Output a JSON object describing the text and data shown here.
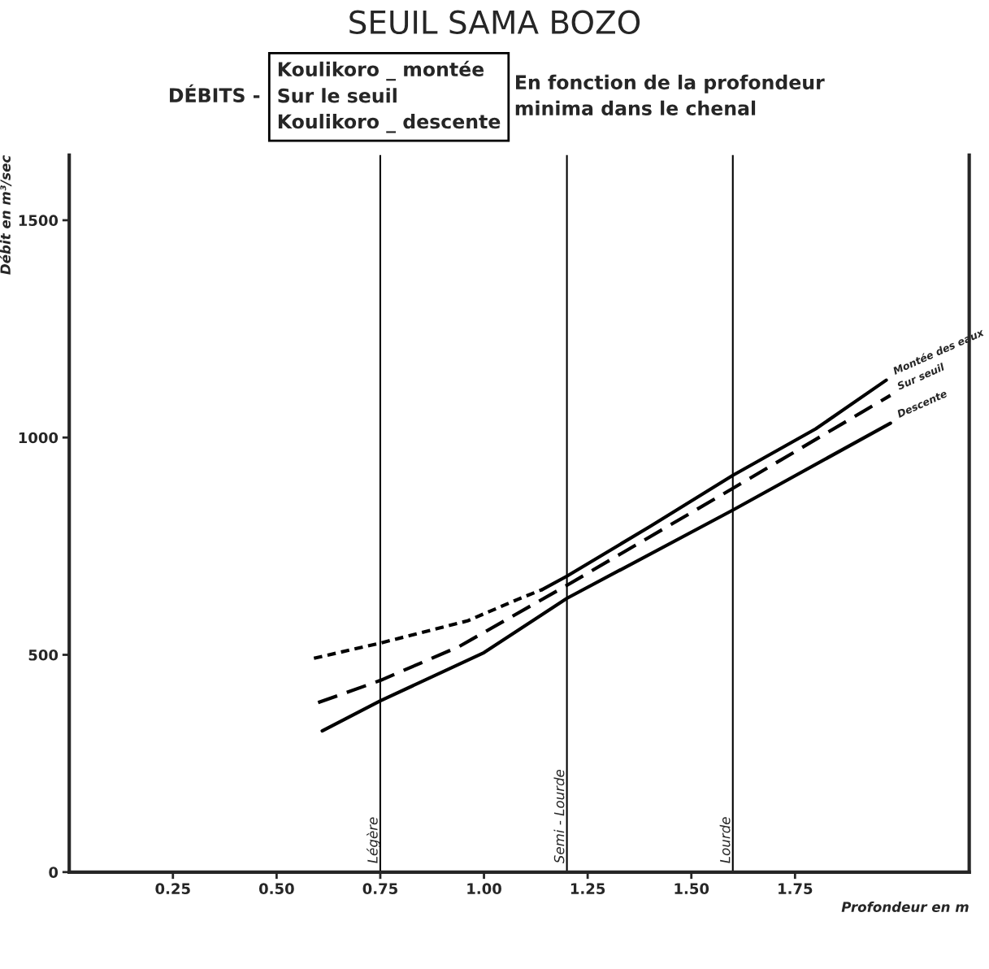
{
  "chart_data": {
    "type": "line",
    "title": "SEUIL SAMA BOZO",
    "xlabel": "Profondeur en m",
    "ylabel": "Débit en m³/sec",
    "annotations": [
      "DÉBITS -",
      "Koulikoro _ montée\nSur le seuil\nKoulikoro _ descente",
      "En fonction de la profondeur\nminima dans le chenal"
    ],
    "series": [
      {
        "name": "Montée des eaux",
        "color": "#000000",
        "line_style": "solid",
        "x": [
          1.14,
          1.2,
          1.4,
          1.6,
          1.8,
          1.97
        ],
        "values": [
          650,
          681,
          795,
          913,
          1020,
          1132
        ]
      },
      {
        "color": "#000000",
        "line_style": "dotted",
        "x": [
          0.59,
          0.75,
          0.96,
          1.08,
          1.14
        ],
        "values": [
          492,
          527,
          578,
          627,
          650
        ]
      },
      {
        "name": "Sur seuil",
        "color": "#000000",
        "line_style": "dashed",
        "x": [
          0.6,
          0.75,
          0.94,
          1.2,
          1.6,
          1.98
        ],
        "values": [
          390,
          441,
          519,
          660,
          883,
          1097
        ]
      },
      {
        "name": "Descente",
        "color": "#000000",
        "line_style": "solid",
        "x": [
          0.61,
          0.75,
          1.0,
          1.2,
          1.6,
          1.98
        ],
        "values": [
          325,
          394,
          505,
          630,
          833,
          1033
        ]
      }
    ],
    "ref_lines": [
      {
        "axis": "x",
        "value": 0.75,
        "label": "Légère"
      },
      {
        "axis": "x",
        "value": 1.2,
        "label": "Semi - Lourde"
      },
      {
        "axis": "x",
        "value": 1.6,
        "label": "Lourde"
      }
    ],
    "xlim": [
      0,
      2.17
    ],
    "ylim": [
      0,
      1650
    ],
    "xticks": [
      0.25,
      {
        "value": 0.5,
        "label": "0.50"
      },
      0.75,
      {
        "value": 1.0,
        "label": "1.00"
      },
      1.25,
      {
        "value": 1.5,
        "label": "1.50"
      },
      1.75
    ],
    "yticks": [
      0,
      500,
      1000,
      1500
    ],
    "grid": false,
    "legend": false,
    "marker": "none"
  }
}
